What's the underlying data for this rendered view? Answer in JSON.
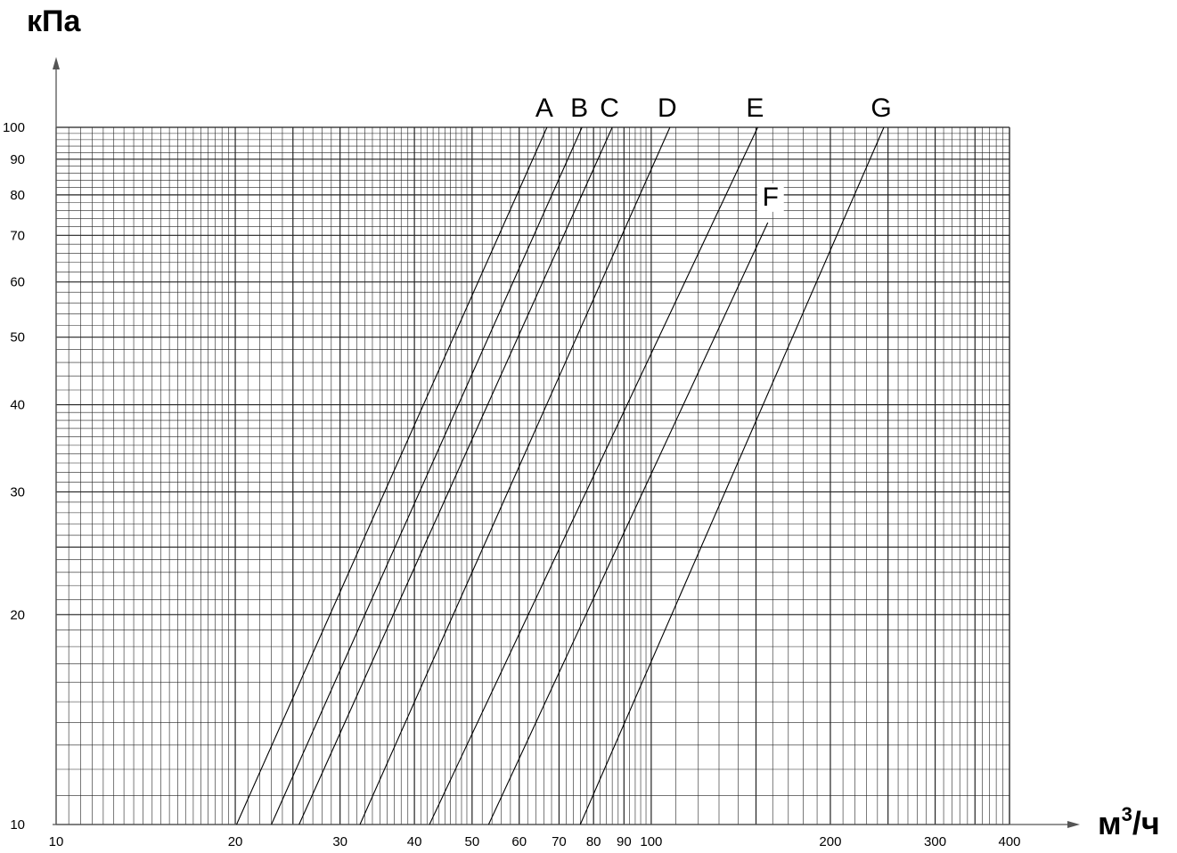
{
  "chart_data": {
    "type": "line",
    "xscale": "log",
    "yscale": "log",
    "xlim": [
      10,
      400
    ],
    "ylim": [
      10,
      100
    ],
    "grid": true,
    "xlabel": "м/ч",
    "xlabel_base": "м",
    "xlabel_sup": "3",
    "xlabel_tail": "/ч",
    "ylabel": "кПа",
    "x_ticks": [
      10,
      20,
      30,
      40,
      50,
      60,
      70,
      80,
      90,
      100,
      200,
      300,
      400
    ],
    "x_tick_labels": [
      "10",
      "20",
      "30",
      "40",
      "50",
      "60",
      "70",
      "80",
      "90",
      "100",
      "200",
      "300",
      "400"
    ],
    "y_ticks": [
      10,
      20,
      30,
      40,
      50,
      60,
      70,
      80,
      90,
      100
    ],
    "y_tick_labels": [
      "10",
      "20",
      "30",
      "40",
      "50",
      "60",
      "70",
      "80",
      "90",
      "100"
    ],
    "series": [
      {
        "name": "A",
        "x": [
          20.1,
          66.8
        ],
        "y": [
          10,
          100
        ]
      },
      {
        "name": "B",
        "x": [
          23.0,
          76.5
        ],
        "y": [
          10,
          100
        ]
      },
      {
        "name": "C",
        "x": [
          25.6,
          86.0
        ],
        "y": [
          10,
          100
        ]
      },
      {
        "name": "D",
        "x": [
          32.4,
          107.5
        ],
        "y": [
          10,
          100
        ]
      },
      {
        "name": "E",
        "x": [
          42.4,
          151.0
        ],
        "y": [
          10,
          100
        ]
      },
      {
        "name": "F",
        "x": [
          53.3,
          157.0
        ],
        "y": [
          10,
          73
        ]
      },
      {
        "name": "G",
        "x": [
          76.0,
          246.0
        ],
        "y": [
          10,
          100
        ]
      }
    ]
  },
  "colors": {
    "line": "#000000",
    "grid": "#222222",
    "axis": "#555555",
    "background": "#ffffff"
  }
}
